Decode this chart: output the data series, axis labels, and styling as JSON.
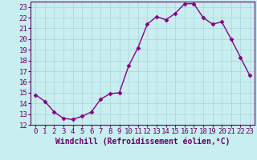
{
  "x": [
    0,
    1,
    2,
    3,
    4,
    5,
    6,
    7,
    8,
    9,
    10,
    11,
    12,
    13,
    14,
    15,
    16,
    17,
    18,
    19,
    20,
    21,
    22,
    23
  ],
  "y": [
    14.8,
    14.2,
    13.2,
    12.6,
    12.5,
    12.8,
    13.2,
    14.4,
    14.9,
    15.0,
    17.5,
    19.2,
    21.4,
    22.1,
    21.8,
    22.4,
    23.3,
    23.3,
    22.0,
    21.4,
    21.6,
    20.0,
    18.3,
    16.6
  ],
  "line_color": "#880088",
  "marker": "D",
  "markersize": 2.5,
  "linewidth": 1.0,
  "bg_color": "#c8eef0",
  "grid_color": "#b0d8dc",
  "xlabel": "Windchill (Refroidissement éolien,°C)",
  "xlabel_fontsize": 7,
  "tick_fontsize": 6.5,
  "ylim": [
    12,
    23.5
  ],
  "yticks": [
    12,
    13,
    14,
    15,
    16,
    17,
    18,
    19,
    20,
    21,
    22,
    23
  ],
  "xticks": [
    0,
    1,
    2,
    3,
    4,
    5,
    6,
    7,
    8,
    9,
    10,
    11,
    12,
    13,
    14,
    15,
    16,
    17,
    18,
    19,
    20,
    21,
    22,
    23
  ],
  "text_color": "#660066"
}
